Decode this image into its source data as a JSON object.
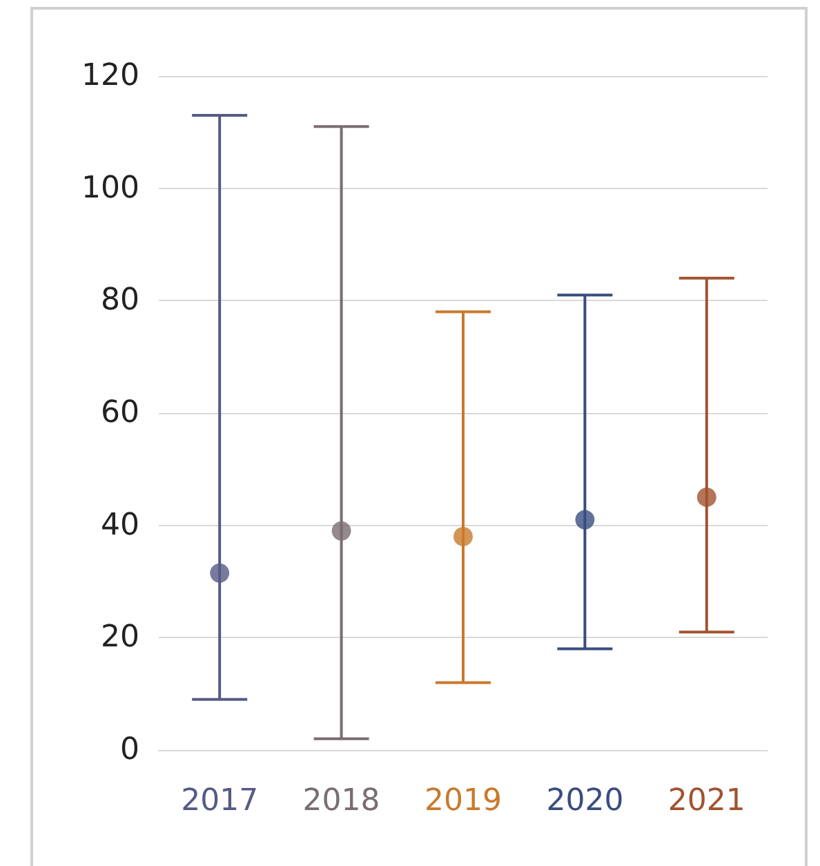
{
  "chart_data": {
    "type": "scatter",
    "categories": [
      "2017",
      "2018",
      "2019",
      "2020",
      "2021"
    ],
    "values": [
      31.5,
      39,
      38,
      41,
      45
    ],
    "errors": [
      [
        9,
        113
      ],
      [
        2,
        111
      ],
      [
        12,
        78
      ],
      [
        18,
        81
      ],
      [
        21,
        84
      ]
    ],
    "colors": [
      "#565a85",
      "#7a6d72",
      "#c87a2c",
      "#3a4d80",
      "#a1532f"
    ],
    "ylim": [
      0,
      120
    ],
    "yticks": [
      0,
      20,
      40,
      60,
      80,
      100,
      120
    ],
    "grid": "y",
    "marker": "circle"
  }
}
